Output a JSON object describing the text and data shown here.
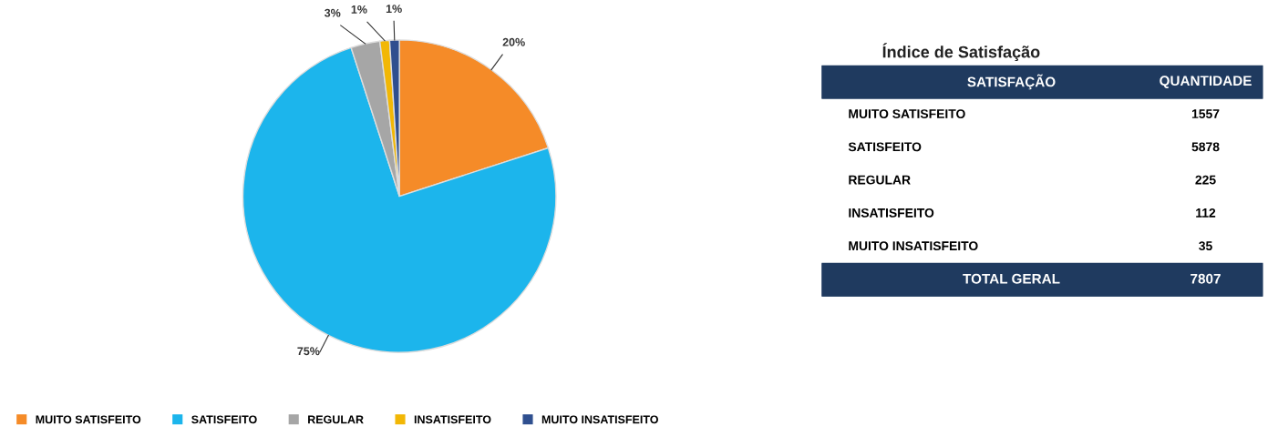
{
  "chart_data": [
    {
      "type": "pie",
      "categories": [
        "MUITO SATISFEITO",
        "SATISFEITO",
        "REGULAR",
        "INSATISFEITO",
        "MUITO INSATISFEITO"
      ],
      "values": [
        20,
        75,
        3,
        1,
        1
      ],
      "colors": [
        "#f58b28",
        "#1cb5ec",
        "#a6a6a6",
        "#f2b705",
        "#2f4f8f"
      ],
      "value_labels": [
        "20%",
        "75%",
        "3%",
        "1%",
        "1%"
      ],
      "legend": "bottom"
    },
    {
      "type": "other",
      "title": "Índice de Satisfação",
      "categories": [
        "MUITO SATISFEITO",
        "SATISFEITO",
        "REGULAR",
        "INSATISFEITO",
        "MUITO INSATISFEITO"
      ],
      "values": [
        1557,
        5878,
        225,
        112,
        35
      ],
      "data_labels": true,
      "annotations": [
        "SATISFAÇÃO",
        "QUANTIDADE",
        "TOTAL GERAL",
        "7807"
      ]
    }
  ]
}
